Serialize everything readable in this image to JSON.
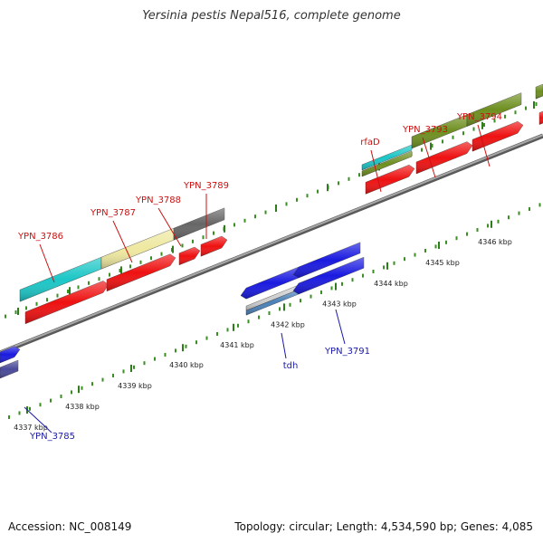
{
  "title": "Yersinia pestis Nepal516, complete genome",
  "footer": {
    "accession": "Accession: NC_008149",
    "topology": "Topology: circular; Length: 4,534,590 bp; Genes: 4,085"
  },
  "colors": {
    "backbone": "#8a8a8a",
    "tick_major": "#2e7d1a",
    "tick_minor": "#3a8f22",
    "label_forward": "#cc1111",
    "label_reverse": "#1a1aaa",
    "cds": "#ee1111",
    "cyan_gene": "#1cc6c6",
    "khaki_gene": "#eee8a0",
    "grey_gene": "#666666",
    "olive_gene": "#6e8f20",
    "blue_gene": "#1a1ae0",
    "steel_gene": "#4a80b8",
    "slate_gene": "#4a4a99"
  },
  "kbp_labels": [
    "4337 kbp",
    "4338 kbp",
    "4339 kbp",
    "4340 kbp",
    "4341 kbp",
    "4342 kbp",
    "4343 kbp",
    "4344 kbp",
    "4345 kbp",
    "4346 kbp"
  ],
  "gene_labels_forward": [
    "YPN_3786",
    "YPN_3787",
    "YPN_3788",
    "YPN_3789",
    "rfaD",
    "YPN_3793",
    "YPN_3794"
  ],
  "gene_labels_reverse": [
    "YPN_3785",
    "tdh",
    "YPN_3791"
  ]
}
